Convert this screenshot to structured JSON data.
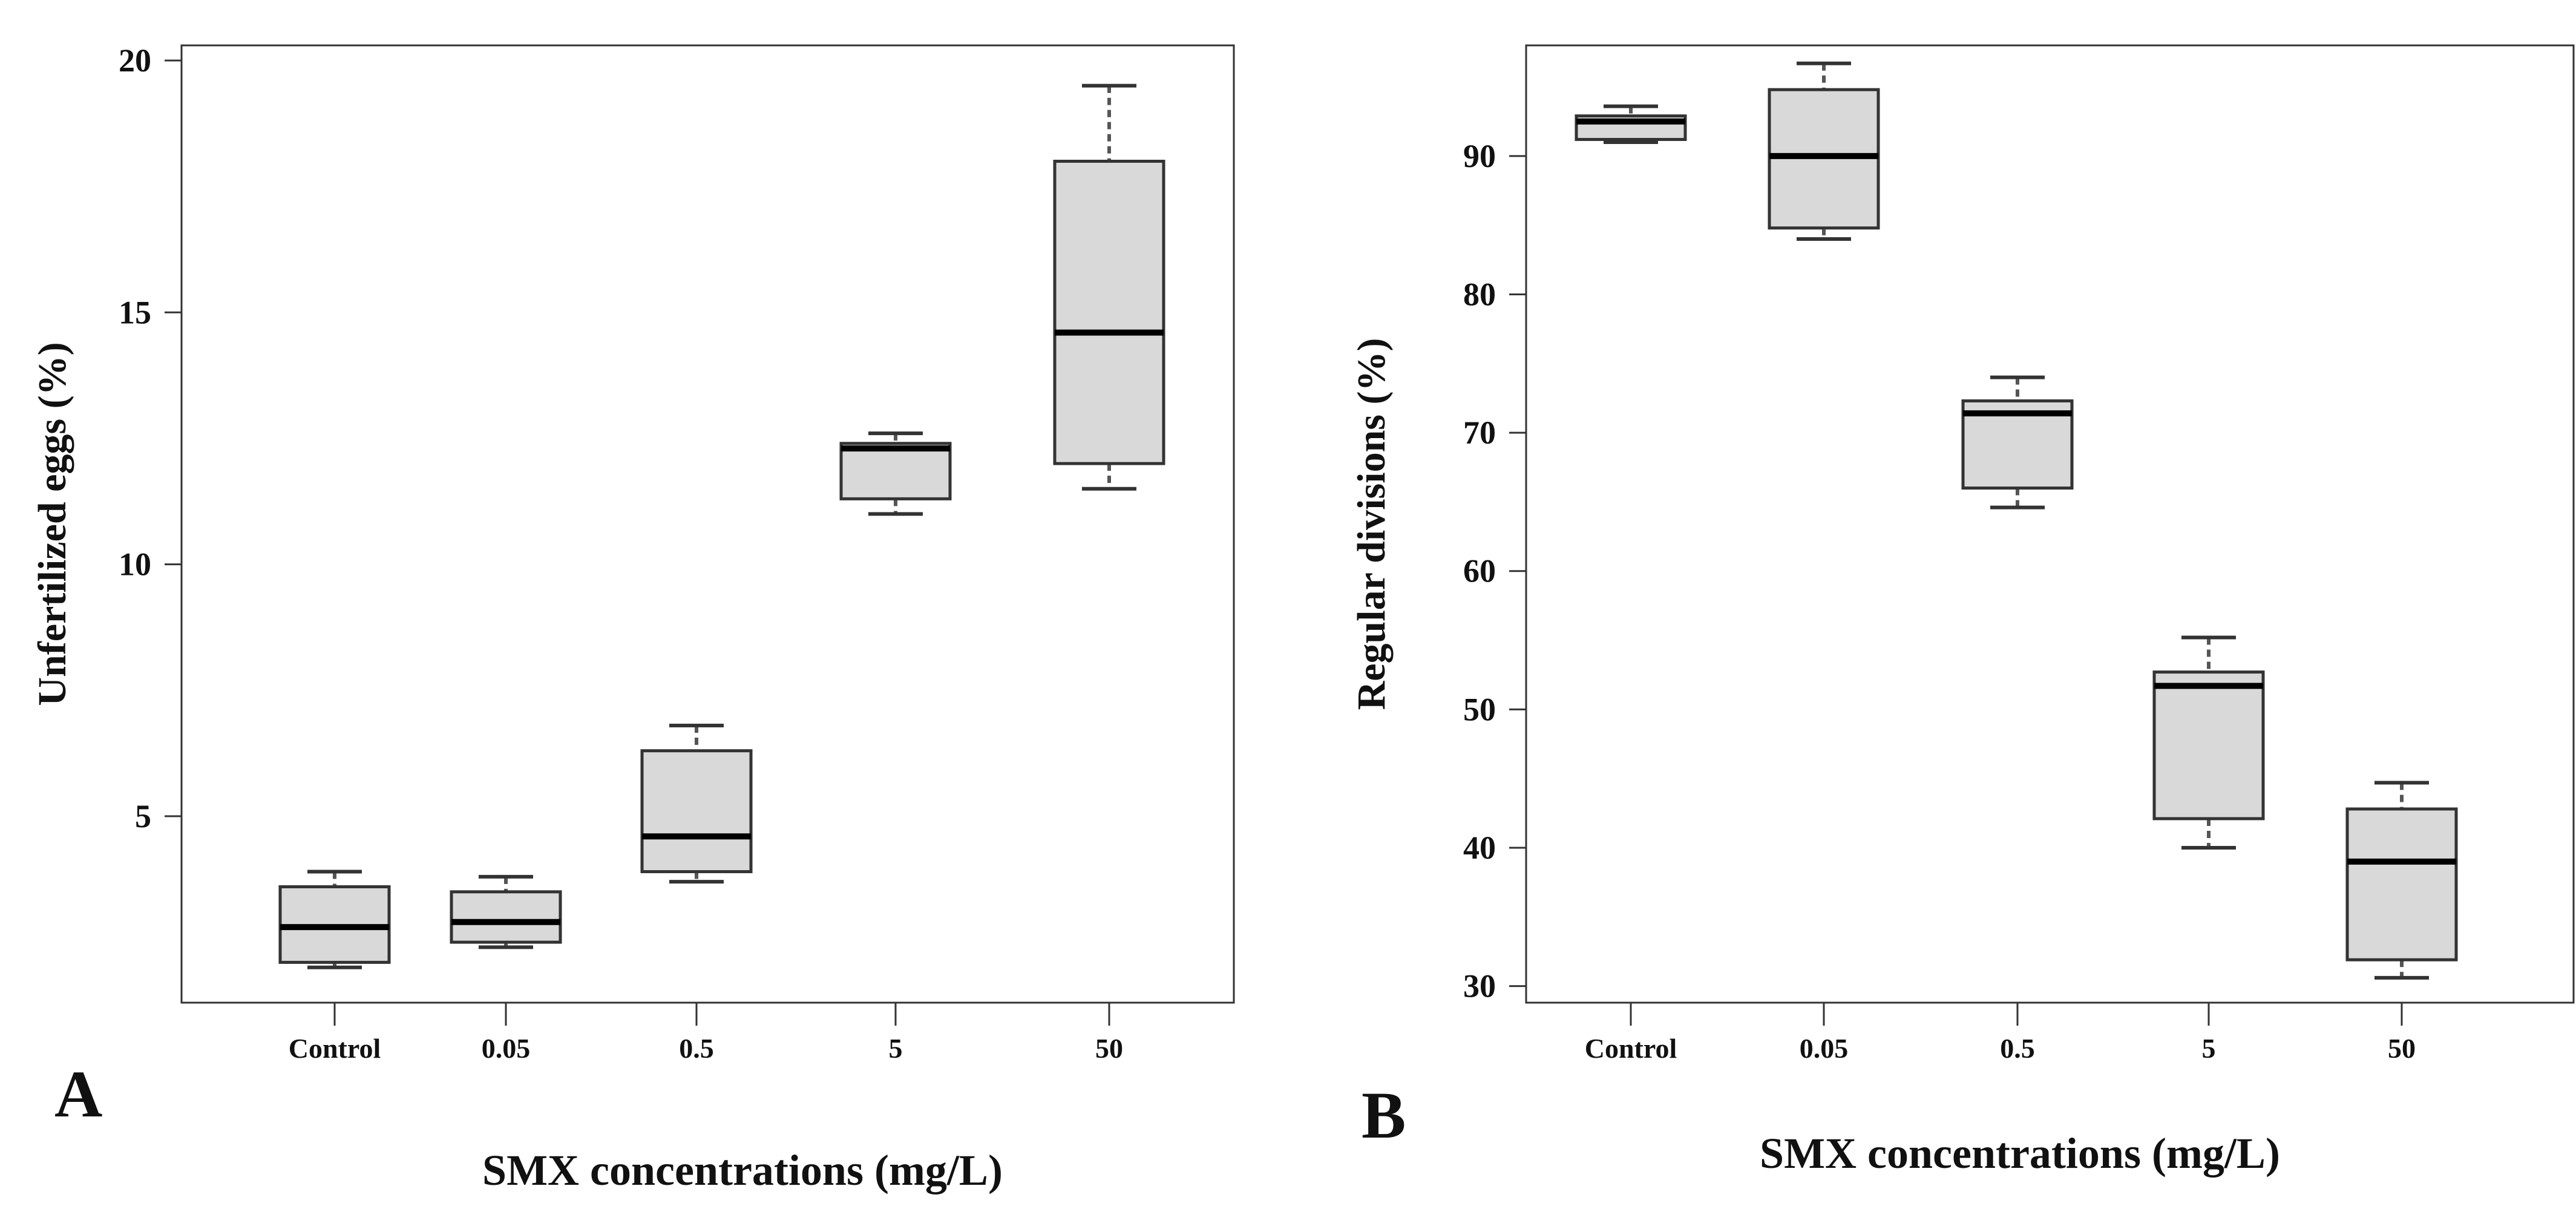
{
  "chart_data": [
    {
      "type": "box",
      "panel_label": "A",
      "title": "",
      "xlabel": "SMX concentrations (mg/L)",
      "ylabel": "Unfertilized eggs (%)",
      "categories": [
        "Control",
        "0.05",
        "0.5",
        "5",
        "50"
      ],
      "ylim": [
        1.3,
        20.3
      ],
      "yticks": [
        5,
        10,
        15,
        20
      ],
      "ytick_labels": [
        "5",
        "10",
        "15",
        "20"
      ],
      "boxes": [
        {
          "min": 2.0,
          "q1": 2.1,
          "median": 2.8,
          "q3": 3.6,
          "max": 3.9
        },
        {
          "min": 2.4,
          "q1": 2.5,
          "median": 2.9,
          "q3": 3.5,
          "max": 3.8
        },
        {
          "min": 3.7,
          "q1": 3.9,
          "median": 4.6,
          "q3": 6.3,
          "max": 6.8
        },
        {
          "min": 11.0,
          "q1": 11.3,
          "median": 12.3,
          "q3": 12.4,
          "max": 12.6
        },
        {
          "min": 11.5,
          "q1": 12.0,
          "median": 14.6,
          "q3": 18.0,
          "max": 19.5
        }
      ]
    },
    {
      "type": "box",
      "panel_label": "B",
      "title": "",
      "xlabel": "SMX concentrations (mg/L)",
      "ylabel": "Regular divisions (%)",
      "categories": [
        "Control",
        "0.05",
        "0.5",
        "5",
        "50"
      ],
      "ylim": [
        28.8,
        98.0
      ],
      "yticks": [
        30,
        40,
        50,
        60,
        70,
        80,
        90
      ],
      "ytick_labels": [
        "30",
        "40",
        "50",
        "60",
        "70",
        "80",
        "90"
      ],
      "boxes": [
        {
          "min": 91.0,
          "q1": 91.2,
          "median": 92.5,
          "q3": 92.9,
          "max": 93.6
        },
        {
          "min": 84.0,
          "q1": 84.8,
          "median": 90.0,
          "q3": 94.8,
          "max": 96.7
        },
        {
          "min": 64.6,
          "q1": 66.0,
          "median": 71.4,
          "q3": 72.3,
          "max": 74.0
        },
        {
          "min": 40.0,
          "q1": 42.1,
          "median": 51.7,
          "q3": 52.7,
          "max": 55.2
        },
        {
          "min": 30.6,
          "q1": 31.9,
          "median": 39.0,
          "q3": 42.8,
          "max": 44.7
        }
      ]
    }
  ]
}
